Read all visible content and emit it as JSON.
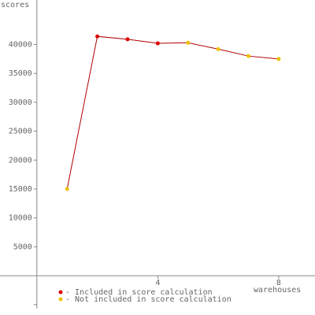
{
  "chart_data": {
    "type": "line",
    "y_label": "scores",
    "x_label": "warehouses",
    "x": [
      1,
      2,
      3,
      4,
      5,
      6,
      7,
      8
    ],
    "values": [
      15000,
      41400,
      40900,
      40200,
      40300,
      39200,
      38000,
      37500
    ],
    "included": [
      false,
      true,
      true,
      true,
      false,
      false,
      false,
      false
    ],
    "color": "#b00000",
    "legend": [
      {
        "label": "- Included in score calculation",
        "color": "#dd0000"
      },
      {
        "label": "- Not included in score calculation",
        "color": "#f0c000"
      }
    ],
    "xlim": [
      -1.22,
      9.2
    ],
    "ylim": [
      -6800,
      47700
    ],
    "xticks": [
      4,
      8
    ],
    "yticks": [
      5000,
      10000,
      15000,
      20000,
      25000,
      30000,
      35000,
      40000
    ],
    "yminor_ticks": [
      -5000
    ]
  }
}
